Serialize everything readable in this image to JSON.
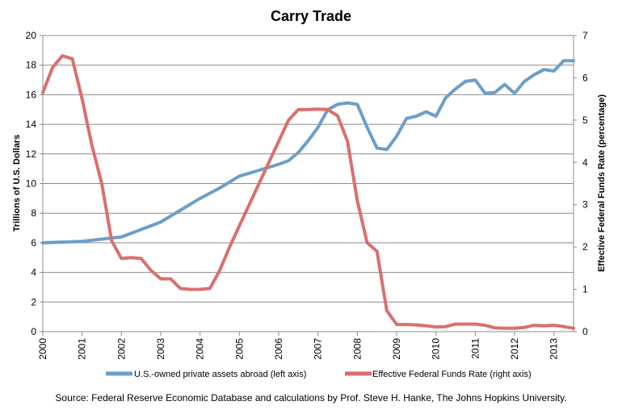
{
  "chart_data": {
    "type": "line",
    "title": "Carry Trade",
    "xlabel": "",
    "ylabel_left": "Trillions of U.S. Dollars",
    "ylabel_right": "Effective Federal Funds Rate (percentage)",
    "x_ticks": [
      "2000",
      "2001",
      "2002",
      "2003",
      "2004",
      "2005",
      "2006",
      "2007",
      "2008",
      "2009",
      "2010",
      "2011",
      "2012",
      "2013"
    ],
    "xlim": [
      2000.0,
      2013.5
    ],
    "ylim_left": [
      0,
      20
    ],
    "yticks_left": [
      0,
      2,
      4,
      6,
      8,
      10,
      12,
      14,
      16,
      18,
      20
    ],
    "ylim_right": [
      0,
      7
    ],
    "yticks_right": [
      0,
      1,
      2,
      3,
      4,
      5,
      6,
      7
    ],
    "grid": true,
    "legend_position": "bottom",
    "series": [
      {
        "name": "U.S.-owned private assets abroad (left axis)",
        "axis": "left",
        "color": "#6b9fc9",
        "x": [
          2000.0,
          2000.5,
          2001.0,
          2001.5,
          2002.0,
          2002.5,
          2003.0,
          2003.5,
          2004.0,
          2004.5,
          2005.0,
          2005.5,
          2006.0,
          2006.25,
          2006.5,
          2006.75,
          2007.0,
          2007.25,
          2007.5,
          2007.75,
          2008.0,
          2008.25,
          2008.5,
          2008.75,
          2009.0,
          2009.25,
          2009.5,
          2009.75,
          2010.0,
          2010.25,
          2010.5,
          2010.75,
          2011.0,
          2011.25,
          2011.5,
          2011.75,
          2012.0,
          2012.25,
          2012.5,
          2012.75,
          2013.0,
          2013.25,
          2013.5
        ],
        "values": [
          6.0,
          6.05,
          6.1,
          6.25,
          6.4,
          6.9,
          7.4,
          8.2,
          9.0,
          9.7,
          10.5,
          10.9,
          11.3,
          11.55,
          12.1,
          12.9,
          13.8,
          15.0,
          15.35,
          15.45,
          15.35,
          13.8,
          12.4,
          12.3,
          13.2,
          14.4,
          14.55,
          14.85,
          14.55,
          15.8,
          16.4,
          16.9,
          17.0,
          16.1,
          16.15,
          16.7,
          16.1,
          16.9,
          17.35,
          17.7,
          17.6,
          18.3,
          18.3
        ]
      },
      {
        "name": "Effective Federal Funds Rate (right axis)",
        "axis": "right",
        "color": "#d9706e",
        "x": [
          2000.0,
          2000.25,
          2000.5,
          2000.75,
          2001.0,
          2001.25,
          2001.5,
          2001.75,
          2002.0,
          2002.25,
          2002.5,
          2002.75,
          2003.0,
          2003.25,
          2003.5,
          2003.75,
          2004.0,
          2004.25,
          2004.5,
          2004.75,
          2005.0,
          2005.25,
          2005.5,
          2005.75,
          2006.0,
          2006.25,
          2006.5,
          2006.75,
          2007.0,
          2007.25,
          2007.5,
          2007.75,
          2008.0,
          2008.25,
          2008.5,
          2008.75,
          2009.0,
          2009.25,
          2009.5,
          2009.75,
          2010.0,
          2010.25,
          2010.5,
          2010.75,
          2011.0,
          2011.25,
          2011.5,
          2011.75,
          2012.0,
          2012.25,
          2012.5,
          2012.75,
          2013.0,
          2013.25,
          2013.5
        ],
        "values": [
          5.65,
          6.25,
          6.52,
          6.45,
          5.5,
          4.4,
          3.5,
          2.15,
          1.73,
          1.75,
          1.73,
          1.45,
          1.25,
          1.25,
          1.02,
          1.0,
          1.0,
          1.02,
          1.45,
          2.0,
          2.5,
          3.0,
          3.5,
          4.0,
          4.5,
          5.0,
          5.25,
          5.25,
          5.26,
          5.25,
          5.1,
          4.5,
          3.1,
          2.1,
          1.9,
          0.5,
          0.17,
          0.17,
          0.16,
          0.14,
          0.11,
          0.12,
          0.18,
          0.18,
          0.18,
          0.15,
          0.09,
          0.08,
          0.08,
          0.1,
          0.15,
          0.14,
          0.15,
          0.12,
          0.08
        ]
      }
    ]
  },
  "footer": {
    "source": "Source: Federal Reserve Economic Database and calculations by Prof. Steve H. Hanke, The Johns Hopkins University."
  }
}
